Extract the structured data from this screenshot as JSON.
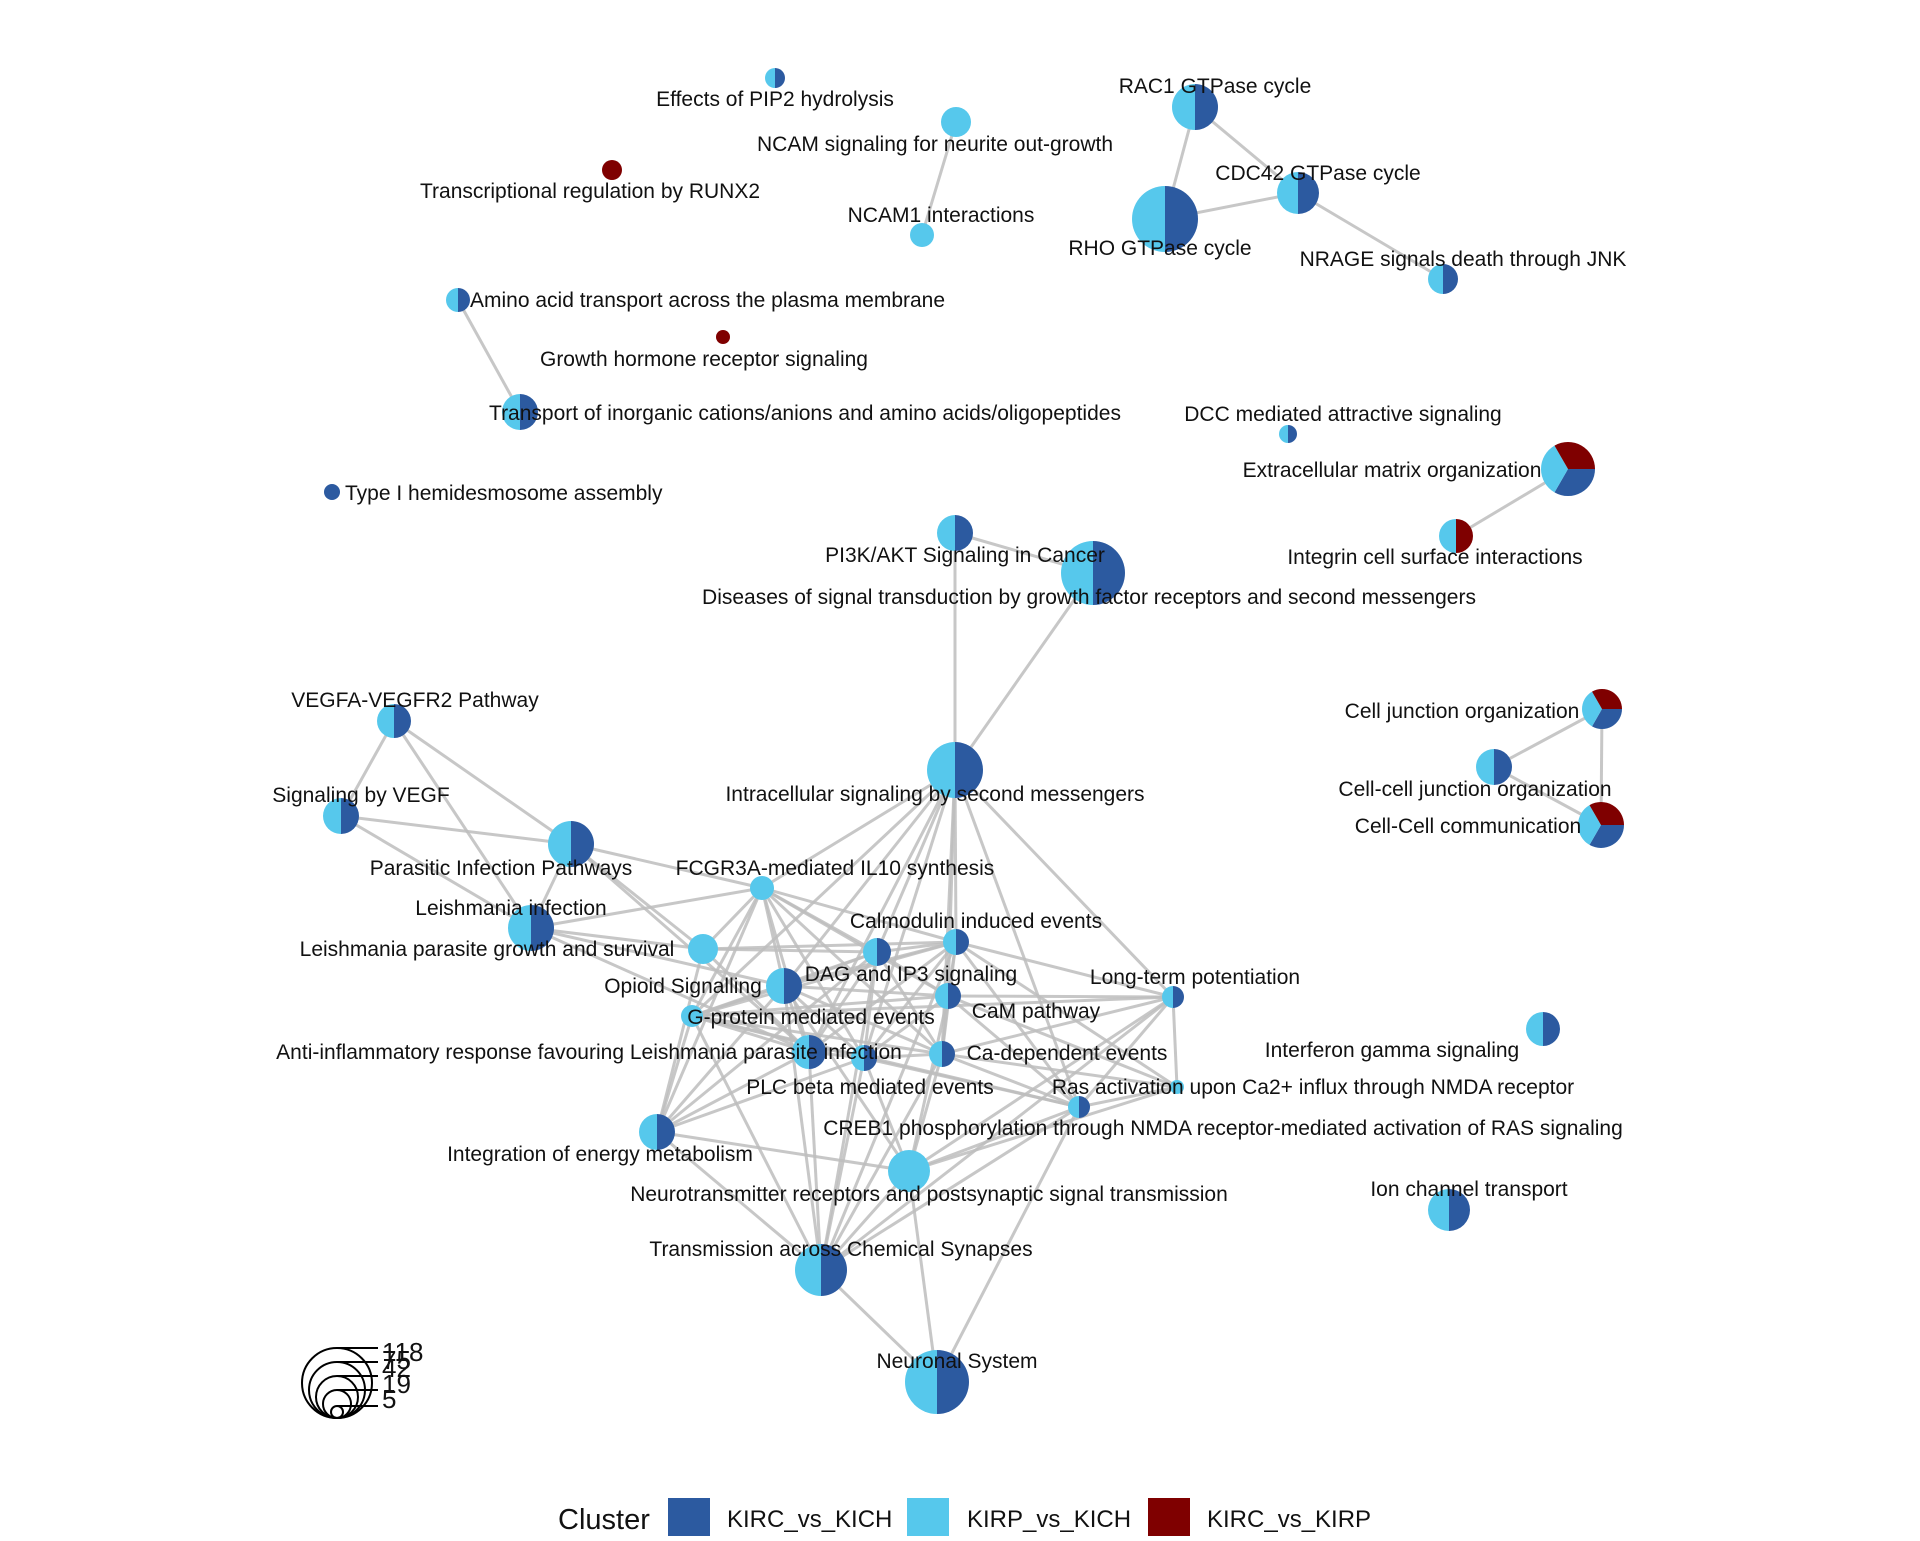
{
  "colors": {
    "KIRC_vs_KICH": "#2C5AA0",
    "KIRP_vs_KICH": "#56C8EC",
    "KIRC_vs_KIRP": "#7F0000",
    "edge": "#BDBDBD",
    "background": "#FFFFFF"
  },
  "legend": {
    "title": "Cluster",
    "items": [
      {
        "key": "KIRC_vs_KICH",
        "label": "KIRC_vs_KICH"
      },
      {
        "key": "KIRP_vs_KICH",
        "label": "KIRP_vs_KICH"
      },
      {
        "key": "KIRC_vs_KIRP",
        "label": "KIRC_vs_KIRP"
      }
    ]
  },
  "size_legend": {
    "values": [
      "118",
      "75",
      "42",
      "19",
      "5"
    ]
  },
  "nodes": [
    {
      "id": "pip2",
      "label": "Effects of PIP2 hydrolysis",
      "slices": [
        [
          "KIRP_vs_KICH",
          1
        ],
        [
          "KIRC_vs_KICH",
          1
        ]
      ]
    },
    {
      "id": "ncam_neurite",
      "label": "NCAM signaling for neurite out-growth",
      "slices": [
        [
          "KIRP_vs_KICH",
          1
        ]
      ]
    },
    {
      "id": "runx2",
      "label": "Transcriptional regulation by RUNX2",
      "slices": [
        [
          "KIRC_vs_KIRP",
          1
        ]
      ]
    },
    {
      "id": "ncam1",
      "label": "NCAM1 interactions",
      "slices": [
        [
          "KIRP_vs_KICH",
          1
        ]
      ]
    },
    {
      "id": "rac1",
      "label": "RAC1 GTPase cycle",
      "slices": [
        [
          "KIRP_vs_KICH",
          1
        ],
        [
          "KIRC_vs_KICH",
          1
        ]
      ]
    },
    {
      "id": "cdc42",
      "label": "CDC42 GTPase cycle",
      "slices": [
        [
          "KIRP_vs_KICH",
          1
        ],
        [
          "KIRC_vs_KICH",
          1
        ]
      ]
    },
    {
      "id": "rho",
      "label": "RHO GTPase cycle",
      "slices": [
        [
          "KIRP_vs_KICH",
          1
        ],
        [
          "KIRC_vs_KICH",
          1
        ]
      ]
    },
    {
      "id": "nrage",
      "label": "NRAGE signals death through JNK",
      "slices": [
        [
          "KIRP_vs_KICH",
          1
        ],
        [
          "KIRC_vs_KICH",
          1
        ]
      ]
    },
    {
      "id": "aa_transport",
      "label": "Amino acid transport across the plasma membrane",
      "slices": [
        [
          "KIRP_vs_KICH",
          1
        ],
        [
          "KIRC_vs_KICH",
          1
        ]
      ]
    },
    {
      "id": "gh",
      "label": "Growth hormone receptor signaling",
      "slices": [
        [
          "KIRC_vs_KIRP",
          1
        ]
      ]
    },
    {
      "id": "inorg",
      "label": "Transport of inorganic cations/anions and amino acids/oligopeptides",
      "slices": [
        [
          "KIRP_vs_KICH",
          1
        ],
        [
          "KIRC_vs_KICH",
          1
        ]
      ]
    },
    {
      "id": "dcc",
      "label": "DCC mediated attractive signaling",
      "slices": [
        [
          "KIRP_vs_KICH",
          1
        ],
        [
          "KIRC_vs_KICH",
          1
        ]
      ]
    },
    {
      "id": "ecm",
      "label": "Extracellular matrix organization",
      "slices": [
        [
          "KIRC_vs_KICH",
          1
        ],
        [
          "KIRP_vs_KICH",
          1
        ],
        [
          "KIRC_vs_KIRP",
          1
        ]
      ]
    },
    {
      "id": "hemides",
      "label": "Type I hemidesmosome assembly",
      "slices": [
        [
          "KIRC_vs_KICH",
          1
        ]
      ]
    },
    {
      "id": "pi3k",
      "label": "PI3K/AKT Signaling in Cancer",
      "slices": [
        [
          "KIRP_vs_KICH",
          1
        ],
        [
          "KIRC_vs_KICH",
          1
        ]
      ]
    },
    {
      "id": "integrin",
      "label": "Integrin cell surface interactions",
      "slices": [
        [
          "KIRP_vs_KICH",
          1
        ],
        [
          "KIRC_vs_KIRP",
          1
        ]
      ]
    },
    {
      "id": "diseases",
      "label": "Diseases of signal transduction by growth factor receptors and second messengers",
      "slices": [
        [
          "KIRP_vs_KICH",
          1
        ],
        [
          "KIRC_vs_KICH",
          1
        ]
      ]
    },
    {
      "id": "vegfa",
      "label": "VEGFA-VEGFR2 Pathway",
      "slices": [
        [
          "KIRP_vs_KICH",
          1
        ],
        [
          "KIRC_vs_KICH",
          1
        ]
      ]
    },
    {
      "id": "celljunction",
      "label": "Cell junction organization",
      "slices": [
        [
          "KIRC_vs_KICH",
          1
        ],
        [
          "KIRP_vs_KICH",
          1
        ],
        [
          "KIRC_vs_KIRP",
          1
        ]
      ]
    },
    {
      "id": "intracellular",
      "label": "Intracellular signaling by second messengers",
      "slices": [
        [
          "KIRP_vs_KICH",
          1
        ],
        [
          "KIRC_vs_KICH",
          1
        ]
      ]
    },
    {
      "id": "sigvegf",
      "label": "Signaling by VEGF",
      "slices": [
        [
          "KIRP_vs_KICH",
          1
        ],
        [
          "KIRC_vs_KICH",
          1
        ]
      ]
    },
    {
      "id": "cellcell",
      "label": "Cell-cell junction organization",
      "slices": [
        [
          "KIRP_vs_KICH",
          1
        ],
        [
          "KIRC_vs_KICH",
          1
        ]
      ]
    },
    {
      "id": "cellcomm",
      "label": "Cell-Cell communication",
      "slices": [
        [
          "KIRC_vs_KICH",
          1
        ],
        [
          "KIRP_vs_KICH",
          1
        ],
        [
          "KIRC_vs_KIRP",
          1
        ]
      ]
    },
    {
      "id": "parasitic",
      "label": "Parasitic Infection Pathways",
      "slices": [
        [
          "KIRP_vs_KICH",
          1
        ],
        [
          "KIRC_vs_KICH",
          1
        ]
      ]
    },
    {
      "id": "fcgr3a",
      "label": "FCGR3A-mediated IL10 synthesis",
      "slices": [
        [
          "KIRP_vs_KICH",
          1
        ]
      ]
    },
    {
      "id": "leish_inf",
      "label": "Leishmania infection",
      "slices": [
        [
          "KIRP_vs_KICH",
          1
        ],
        [
          "KIRC_vs_KICH",
          1
        ]
      ]
    },
    {
      "id": "calmodulin",
      "label": "Calmodulin induced events",
      "slices": [
        [
          "KIRP_vs_KICH",
          1
        ],
        [
          "KIRC_vs_KICH",
          1
        ]
      ]
    },
    {
      "id": "leish_growth",
      "label": "Leishmania parasite growth and survival",
      "slices": [
        [
          "KIRP_vs_KICH",
          1
        ]
      ]
    },
    {
      "id": "dag",
      "label": "DAG and IP3 signaling",
      "slices": [
        [
          "KIRP_vs_KICH",
          1
        ],
        [
          "KIRC_vs_KICH",
          1
        ]
      ]
    },
    {
      "id": "ltp",
      "label": "Long-term potentiation",
      "slices": [
        [
          "KIRP_vs_KICH",
          1
        ],
        [
          "KIRC_vs_KICH",
          1
        ]
      ]
    },
    {
      "id": "opioid",
      "label": "Opioid Signalling",
      "slices": [
        [
          "KIRP_vs_KICH",
          1
        ],
        [
          "KIRC_vs_KICH",
          1
        ]
      ]
    },
    {
      "id": "cam",
      "label": "CaM pathway",
      "slices": [
        [
          "KIRP_vs_KICH",
          1
        ],
        [
          "KIRC_vs_KICH",
          1
        ]
      ]
    },
    {
      "id": "gprotein",
      "label": "G-protein mediated events",
      "slices": [
        [
          "KIRP_vs_KICH",
          1
        ]
      ]
    },
    {
      "id": "ifng",
      "label": "Interferon gamma signaling",
      "slices": [
        [
          "KIRP_vs_KICH",
          1
        ],
        [
          "KIRC_vs_KICH",
          1
        ]
      ]
    },
    {
      "id": "antiinf",
      "label": "Anti-inflammatory response favouring Leishmania parasite infection",
      "slices": [
        [
          "KIRP_vs_KICH",
          1
        ],
        [
          "KIRC_vs_KICH",
          1
        ]
      ]
    },
    {
      "id": "cadep",
      "label": "Ca-dependent events",
      "slices": [
        [
          "KIRP_vs_KICH",
          1
        ],
        [
          "KIRC_vs_KICH",
          1
        ]
      ]
    },
    {
      "id": "plcbeta",
      "label": "PLC beta mediated events",
      "slices": [
        [
          "KIRP_vs_KICH",
          1
        ],
        [
          "KIRC_vs_KICH",
          1
        ]
      ]
    },
    {
      "id": "ras",
      "label": "Ras activation upon Ca2+ influx through NMDA receptor",
      "slices": [
        [
          "KIRP_vs_KICH",
          1
        ]
      ]
    },
    {
      "id": "creb1",
      "label": "CREB1 phosphorylation through NMDA receptor-mediated activation of RAS signaling",
      "slices": [
        [
          "KIRP_vs_KICH",
          1
        ],
        [
          "KIRC_vs_KICH",
          1
        ]
      ]
    },
    {
      "id": "energy",
      "label": "Integration of energy metabolism",
      "slices": [
        [
          "KIRP_vs_KICH",
          1
        ],
        [
          "KIRC_vs_KICH",
          1
        ]
      ]
    },
    {
      "id": "ionchannel",
      "label": "Ion channel transport",
      "slices": [
        [
          "KIRP_vs_KICH",
          1
        ],
        [
          "KIRC_vs_KICH",
          1
        ]
      ]
    },
    {
      "id": "neurotrans",
      "label": "Neurotransmitter receptors and postsynaptic signal transmission",
      "slices": [
        [
          "KIRP_vs_KICH",
          1
        ]
      ]
    },
    {
      "id": "transmission",
      "label": "Transmission across Chemical Synapses",
      "slices": [
        [
          "KIRP_vs_KICH",
          1
        ],
        [
          "KIRC_vs_KICH",
          1
        ]
      ]
    },
    {
      "id": "neuronal",
      "label": "Neuronal System",
      "slices": [
        [
          "KIRP_vs_KICH",
          1
        ],
        [
          "KIRC_vs_KICH",
          1
        ]
      ]
    }
  ],
  "edges": [
    [
      "ncam_neurite",
      "ncam1"
    ],
    [
      "rac1",
      "rho"
    ],
    [
      "rac1",
      "cdc42"
    ],
    [
      "cdc42",
      "rho"
    ],
    [
      "cdc42",
      "nrage"
    ],
    [
      "aa_transport",
      "inorg"
    ],
    [
      "ecm",
      "integrin"
    ],
    [
      "pi3k",
      "diseases"
    ],
    [
      "pi3k",
      "intracellular"
    ],
    [
      "diseases",
      "intracellular"
    ],
    [
      "celljunction",
      "cellcell"
    ],
    [
      "celljunction",
      "cellcomm"
    ],
    [
      "cellcell",
      "cellcomm"
    ],
    [
      "vegfa",
      "sigvegf"
    ],
    [
      "vegfa",
      "parasitic"
    ],
    [
      "vegfa",
      "leish_inf"
    ],
    [
      "sigvegf",
      "parasitic"
    ],
    [
      "sigvegf",
      "leish_inf"
    ],
    [
      "parasitic",
      "leish_inf"
    ],
    [
      "parasitic",
      "leish_growth"
    ],
    [
      "parasitic",
      "antiinf"
    ],
    [
      "parasitic",
      "fcgr3a"
    ],
    [
      "leish_inf",
      "leish_growth"
    ],
    [
      "leish_inf",
      "antiinf"
    ],
    [
      "leish_inf",
      "fcgr3a"
    ],
    [
      "leish_inf",
      "opioid"
    ],
    [
      "leish_growth",
      "fcgr3a"
    ],
    [
      "leish_growth",
      "antiinf"
    ],
    [
      "intracellular",
      "fcgr3a"
    ],
    [
      "intracellular",
      "calmodulin"
    ],
    [
      "intracellular",
      "dag"
    ],
    [
      "intracellular",
      "cam"
    ],
    [
      "intracellular",
      "opioid"
    ],
    [
      "intracellular",
      "gprotein"
    ],
    [
      "intracellular",
      "cadep"
    ],
    [
      "intracellular",
      "plcbeta"
    ],
    [
      "intracellular",
      "ltp"
    ],
    [
      "intracellular",
      "creb1"
    ],
    [
      "intracellular",
      "antiinf"
    ],
    [
      "fcgr3a",
      "calmodulin"
    ],
    [
      "fcgr3a",
      "dag"
    ],
    [
      "fcgr3a",
      "opioid"
    ],
    [
      "fcgr3a",
      "gprotein"
    ],
    [
      "fcgr3a",
      "cadep"
    ],
    [
      "fcgr3a",
      "plcbeta"
    ],
    [
      "fcgr3a",
      "antiinf"
    ],
    [
      "fcgr3a",
      "energy"
    ],
    [
      "fcgr3a",
      "cam"
    ],
    [
      "calmodulin",
      "dag"
    ],
    [
      "calmodulin",
      "cam"
    ],
    [
      "calmodulin",
      "opioid"
    ],
    [
      "calmodulin",
      "gprotein"
    ],
    [
      "calmodulin",
      "cadep"
    ],
    [
      "calmodulin",
      "plcbeta"
    ],
    [
      "calmodulin",
      "ltp"
    ],
    [
      "calmodulin",
      "creb1"
    ],
    [
      "calmodulin",
      "ras"
    ],
    [
      "calmodulin",
      "antiinf"
    ],
    [
      "calmodulin",
      "leish_growth"
    ],
    [
      "dag",
      "cam"
    ],
    [
      "dag",
      "opioid"
    ],
    [
      "dag",
      "gprotein"
    ],
    [
      "dag",
      "cadep"
    ],
    [
      "dag",
      "plcbeta"
    ],
    [
      "dag",
      "energy"
    ],
    [
      "dag",
      "antiinf"
    ],
    [
      "dag",
      "transmission"
    ],
    [
      "dag",
      "leish_growth"
    ],
    [
      "cam",
      "opioid"
    ],
    [
      "cam",
      "gprotein"
    ],
    [
      "cam",
      "cadep"
    ],
    [
      "cam",
      "plcbeta"
    ],
    [
      "cam",
      "ltp"
    ],
    [
      "cam",
      "ras"
    ],
    [
      "cam",
      "creb1"
    ],
    [
      "cam",
      "neurotrans"
    ],
    [
      "opioid",
      "gprotein"
    ],
    [
      "opioid",
      "cadep"
    ],
    [
      "opioid",
      "plcbeta"
    ],
    [
      "opioid",
      "energy"
    ],
    [
      "opioid",
      "antiinf"
    ],
    [
      "opioid",
      "transmission"
    ],
    [
      "gprotein",
      "cadep"
    ],
    [
      "gprotein",
      "plcbeta"
    ],
    [
      "gprotein",
      "energy"
    ],
    [
      "gprotein",
      "antiinf"
    ],
    [
      "gprotein",
      "creb1"
    ],
    [
      "cadep",
      "plcbeta"
    ],
    [
      "cadep",
      "ltp"
    ],
    [
      "cadep",
      "ras"
    ],
    [
      "cadep",
      "creb1"
    ],
    [
      "cadep",
      "neurotrans"
    ],
    [
      "cadep",
      "transmission"
    ],
    [
      "plcbeta",
      "energy"
    ],
    [
      "plcbeta",
      "transmission"
    ],
    [
      "plcbeta",
      "neurotrans"
    ],
    [
      "plcbeta",
      "creb1"
    ],
    [
      "plcbeta",
      "antiinf"
    ],
    [
      "ltp",
      "ras"
    ],
    [
      "ltp",
      "creb1"
    ],
    [
      "ltp",
      "neurotrans"
    ],
    [
      "ltp",
      "transmission"
    ],
    [
      "ltp",
      "gprotein"
    ],
    [
      "ras",
      "creb1"
    ],
    [
      "ras",
      "neurotrans"
    ],
    [
      "creb1",
      "neurotrans"
    ],
    [
      "creb1",
      "transmission"
    ],
    [
      "creb1",
      "neuronal"
    ],
    [
      "neurotrans",
      "transmission"
    ],
    [
      "neurotrans",
      "neuronal"
    ],
    [
      "neurotrans",
      "energy"
    ],
    [
      "transmission",
      "neuronal"
    ],
    [
      "energy",
      "transmission"
    ],
    [
      "antiinf",
      "transmission"
    ],
    [
      "antiinf",
      "energy"
    ],
    [
      "leish_growth",
      "energy"
    ],
    [
      "opioid",
      "neurotrans"
    ],
    [
      "gprotein",
      "transmission"
    ],
    [
      "calmodulin",
      "transmission"
    ]
  ]
}
